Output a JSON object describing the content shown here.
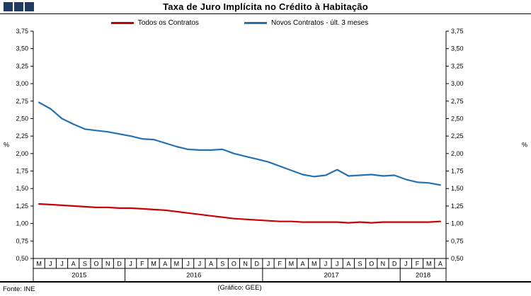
{
  "footer": {
    "source": "Fonte: INE",
    "credit": "(Gráfico: GEE)"
  },
  "colors": {
    "logo": "#1f3a63",
    "axis": "#000000",
    "red": "#cc0000",
    "blue": "#2271b3"
  },
  "chart_data": {
    "type": "line",
    "title": "Taxa de Juro Implícita no Crédito à Habitação",
    "xlabel": "",
    "ylabel": "%",
    "ylim": [
      0.5,
      3.75
    ],
    "ytick_step": 0.25,
    "ytick_labels": [
      "0,50",
      "0,75",
      "1,00",
      "1,25",
      "1,50",
      "1,75",
      "2,00",
      "2,25",
      "2,50",
      "2,75",
      "3,00",
      "3,25",
      "3,50",
      "3,75"
    ],
    "grid": false,
    "legend_position": "top",
    "months": [
      "M",
      "J",
      "J",
      "A",
      "S",
      "O",
      "N",
      "D",
      "J",
      "F",
      "M",
      "A",
      "M",
      "J",
      "J",
      "A",
      "S",
      "O",
      "N",
      "D",
      "J",
      "F",
      "M",
      "A",
      "M",
      "J",
      "J",
      "A",
      "S",
      "O",
      "N",
      "D",
      "J",
      "F",
      "M",
      "A"
    ],
    "year_groups": [
      {
        "label": "2015",
        "count": 8
      },
      {
        "label": "2016",
        "count": 12
      },
      {
        "label": "2017",
        "count": 12
      },
      {
        "label": "2018",
        "count": 4
      }
    ],
    "series": [
      {
        "name": "Todos os Contratos",
        "color": "#cc0000",
        "values": [
          1.28,
          1.27,
          1.26,
          1.25,
          1.24,
          1.23,
          1.23,
          1.22,
          1.22,
          1.21,
          1.2,
          1.19,
          1.17,
          1.15,
          1.13,
          1.11,
          1.09,
          1.07,
          1.06,
          1.05,
          1.04,
          1.03,
          1.03,
          1.02,
          1.02,
          1.02,
          1.02,
          1.01,
          1.02,
          1.01,
          1.02,
          1.02,
          1.02,
          1.02,
          1.02,
          1.03
        ]
      },
      {
        "name": "Novos Contratos - últ. 3 meses",
        "color": "#2271b3",
        "values": [
          2.73,
          2.64,
          2.5,
          2.42,
          2.35,
          2.33,
          2.31,
          2.28,
          2.25,
          2.21,
          2.2,
          2.15,
          2.1,
          2.06,
          2.05,
          2.05,
          2.06,
          2.0,
          1.96,
          1.92,
          1.88,
          1.82,
          1.76,
          1.7,
          1.67,
          1.69,
          1.77,
          1.68,
          1.69,
          1.7,
          1.68,
          1.69,
          1.63,
          1.59,
          1.58,
          1.55
        ]
      }
    ]
  }
}
